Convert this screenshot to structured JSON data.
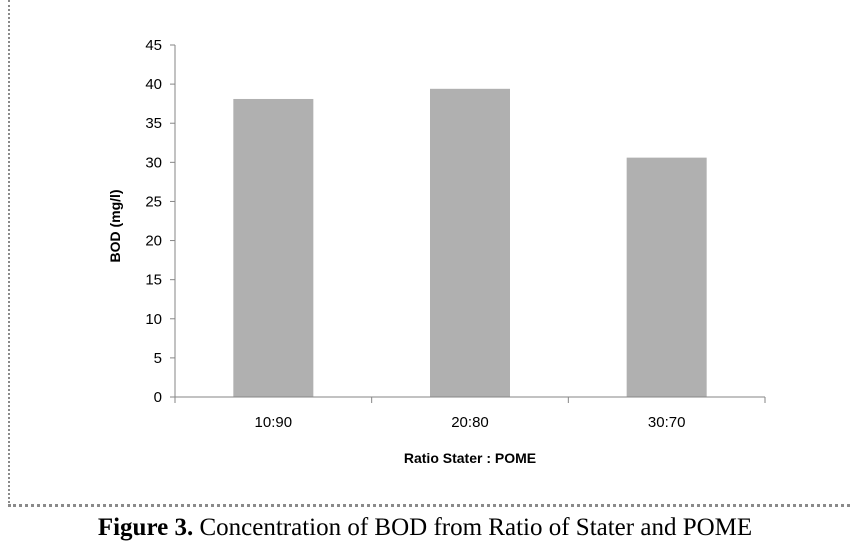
{
  "chart_data": {
    "type": "bar",
    "categories": [
      "10:90",
      "20:80",
      "30:70"
    ],
    "values": [
      38.1,
      39.4,
      30.6
    ],
    "xlabel": "Ratio Stater : POME",
    "ylabel": "BOD (mg/l)",
    "ylim": [
      0,
      45
    ],
    "yticks": [
      0,
      5,
      10,
      15,
      20,
      25,
      30,
      35,
      40,
      45
    ],
    "bar_color": "#b0b0b0",
    "grid": false,
    "legend": "none"
  },
  "caption": {
    "label": "Figure 3.",
    "text": " Concentration of BOD from Ratio of Stater and POME"
  }
}
